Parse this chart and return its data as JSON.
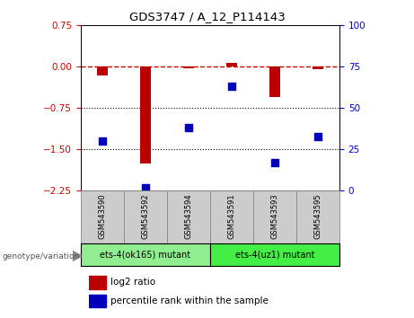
{
  "title": "GDS3747 / A_12_P114143",
  "samples": [
    "GSM543590",
    "GSM543592",
    "GSM543594",
    "GSM543591",
    "GSM543593",
    "GSM543595"
  ],
  "log2_ratio": [
    -0.15,
    -1.75,
    -0.02,
    0.07,
    -0.55,
    -0.05
  ],
  "percentile_rank": [
    30,
    2,
    38,
    63,
    17,
    33
  ],
  "ylim_left": [
    -2.25,
    0.75
  ],
  "ylim_right": [
    0,
    100
  ],
  "yticks_left": [
    0.75,
    0,
    -0.75,
    -1.5,
    -2.25
  ],
  "yticks_right": [
    100,
    75,
    50,
    25,
    0
  ],
  "hline_dashed": 0,
  "hlines_dotted": [
    -0.75,
    -1.5
  ],
  "groups": [
    {
      "label": "ets-4(ok165) mutant",
      "indices": [
        0,
        1,
        2
      ],
      "color": "#90ee90"
    },
    {
      "label": "ets-4(uz1) mutant",
      "indices": [
        3,
        4,
        5
      ],
      "color": "#44ee44"
    }
  ],
  "bar_color": "#bb0000",
  "scatter_color": "#0000bb",
  "dashed_line_color": "#cc0000",
  "tick_label_color_left": "#cc0000",
  "tick_label_color_right": "#0000cc",
  "legend_log2_label": "log2 ratio",
  "legend_percentile_label": "percentile rank within the sample",
  "genotype_label": "genotype/variation",
  "bar_width": 0.25,
  "scatter_size": 28,
  "label_box_color": "#cccccc"
}
